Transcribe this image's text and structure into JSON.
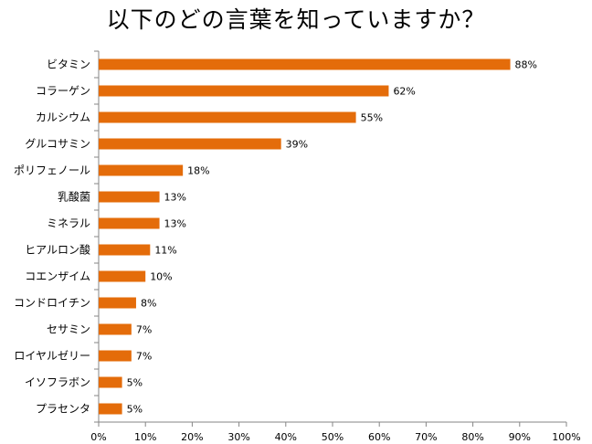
{
  "chart_data": {
    "type": "bar",
    "orientation": "horizontal",
    "title": "以下のどの言葉を知っていますか？",
    "categories": [
      "ビタミン",
      "コラーゲン",
      "カルシウム",
      "グルコサミン",
      "ポリフェノール",
      "乳酸菌",
      "ミネラル",
      "ヒアルロン酸",
      "コエンザイム",
      "コンドロイチン",
      "セサミン",
      "ロイヤルゼリー",
      "イソフラボン",
      "プラセンタ"
    ],
    "values": [
      88,
      62,
      55,
      39,
      18,
      13,
      13,
      11,
      10,
      8,
      7,
      7,
      5,
      5
    ],
    "value_labels": [
      "88%",
      "62%",
      "55%",
      "39%",
      "18%",
      "13%",
      "13%",
      "11%",
      "10%",
      "8%",
      "7%",
      "7%",
      "5%",
      "5%"
    ],
    "xlim": [
      0,
      100
    ],
    "xticks": [
      "0%",
      "10%",
      "20%",
      "30%",
      "40%",
      "50%",
      "60%",
      "70%",
      "80%",
      "90%",
      "100%"
    ],
    "bar_color": "#e46c0a",
    "grid": false
  }
}
